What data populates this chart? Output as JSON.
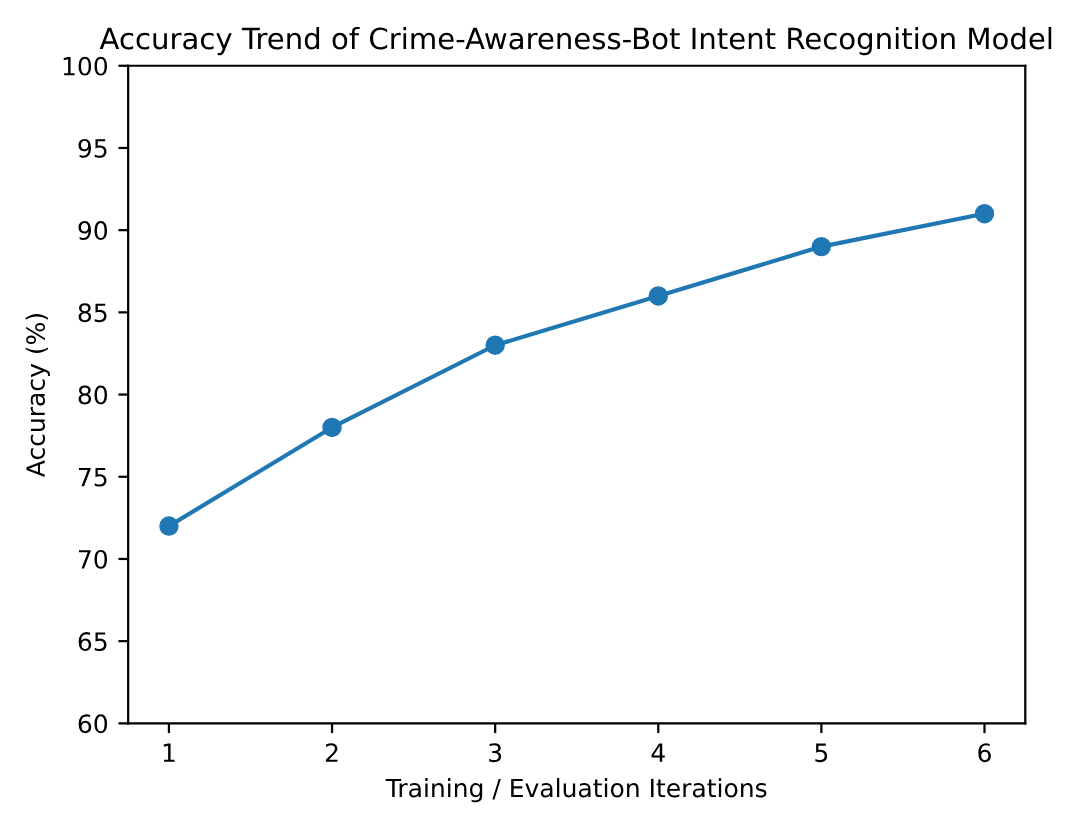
{
  "chart_data": {
    "type": "line",
    "title": "Accuracy Trend of Crime-Awareness-Bot Intent Recognition Model",
    "xlabel": "Training / Evaluation Iterations",
    "ylabel": "Accuracy (%)",
    "x": [
      1,
      2,
      3,
      4,
      5,
      6
    ],
    "series": [
      {
        "color": "#1f77b4",
        "values": [
          72,
          78,
          83,
          86,
          89,
          91
        ]
      }
    ],
    "xlim": [
      0.75,
      6.25
    ],
    "xticks": [
      1,
      2,
      3,
      4,
      5,
      6
    ],
    "ylim": [
      60,
      100
    ],
    "yticks": [
      60,
      65,
      70,
      75,
      80,
      85,
      90,
      95,
      100
    ],
    "marker": "circle",
    "line_style": "solid",
    "grid": false,
    "legend": false
  }
}
